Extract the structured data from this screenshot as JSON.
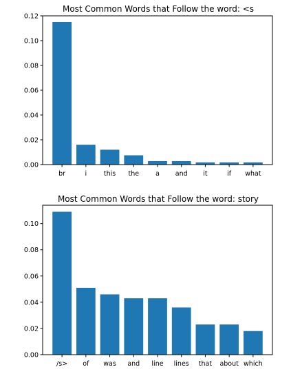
{
  "chart_data": [
    {
      "type": "bar",
      "title": "Most Common Words that Follow the word: <s",
      "categories": [
        "br",
        "i",
        "this",
        "the",
        "a",
        "and",
        "it",
        "if",
        "what"
      ],
      "values": [
        0.115,
        0.016,
        0.012,
        0.0075,
        0.0028,
        0.0028,
        0.0018,
        0.0018,
        0.0018
      ],
      "yticks": [
        "0.00",
        "0.02",
        "0.04",
        "0.06",
        "0.08",
        "0.10",
        "0.12"
      ],
      "ylim": [
        0,
        0.12
      ],
      "xlabel": "",
      "ylabel": "",
      "grid": false,
      "bar_color": "#1f77b4"
    },
    {
      "type": "bar",
      "title": "Most Common Words that Follow the word: story",
      "categories": [
        "/s>",
        "of",
        "was",
        "and",
        "line",
        "lines",
        "that",
        "about",
        "which"
      ],
      "values": [
        0.109,
        0.051,
        0.046,
        0.043,
        0.043,
        0.036,
        0.023,
        0.023,
        0.018
      ],
      "yticks": [
        "0.00",
        "0.02",
        "0.04",
        "0.06",
        "0.08",
        "0.10"
      ],
      "ylim": [
        0,
        0.114
      ],
      "xlabel": "",
      "ylabel": "",
      "grid": false,
      "bar_color": "#1f77b4"
    }
  ]
}
